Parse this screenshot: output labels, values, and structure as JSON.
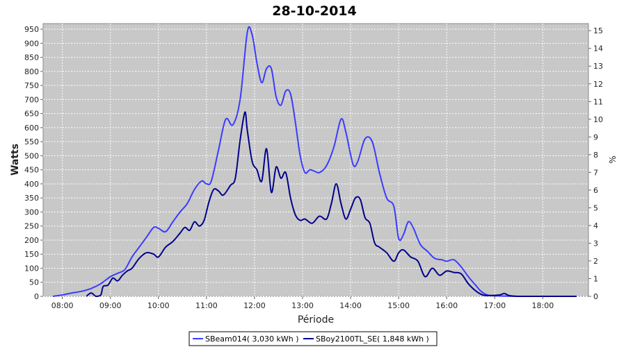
{
  "chart_data": {
    "type": "line",
    "title": "28-10-2014",
    "xlabel": "Période",
    "ylabel": "Watts",
    "y2label": "%",
    "xlim": [
      7.6,
      18.95
    ],
    "ylim": [
      0,
      970
    ],
    "y2lim": [
      0,
      15.4
    ],
    "x_ticks": [
      8,
      9,
      10,
      11,
      12,
      13,
      14,
      15,
      16,
      17,
      18
    ],
    "x_tick_labels": [
      "08:00",
      "09:00",
      "10:00",
      "11:00",
      "12:00",
      "13:00",
      "14:00",
      "15:00",
      "16:00",
      "17:00",
      "18:00"
    ],
    "y_ticks": [
      0,
      50,
      100,
      150,
      200,
      250,
      300,
      350,
      400,
      450,
      500,
      550,
      600,
      650,
      700,
      750,
      800,
      850,
      900,
      950
    ],
    "y2_ticks": [
      0,
      1,
      2,
      3,
      4,
      5,
      6,
      7,
      8,
      9,
      10,
      11,
      12,
      13,
      14,
      15
    ],
    "grid": true,
    "legend_position": "bottom",
    "plot_background": "#c8c8c8",
    "series": [
      {
        "name": "SBeam014( 3,030 kWh )",
        "color": "#3b3bff",
        "x": [
          7.8,
          8.0,
          8.2,
          8.4,
          8.6,
          8.8,
          9.0,
          9.15,
          9.3,
          9.45,
          9.6,
          9.75,
          9.9,
          10.0,
          10.15,
          10.3,
          10.45,
          10.6,
          10.75,
          10.9,
          11.0,
          11.1,
          11.25,
          11.4,
          11.55,
          11.7,
          11.85,
          11.95,
          12.05,
          12.15,
          12.25,
          12.35,
          12.45,
          12.55,
          12.65,
          12.75,
          12.85,
          12.95,
          13.05,
          13.15,
          13.25,
          13.35,
          13.5,
          13.65,
          13.8,
          13.9,
          14.05,
          14.15,
          14.3,
          14.45,
          14.6,
          14.75,
          14.9,
          15.0,
          15.1,
          15.2,
          15.3,
          15.45,
          15.6,
          15.75,
          15.9,
          16.0,
          16.15,
          16.3,
          16.45,
          16.6,
          16.7,
          16.8,
          16.9,
          17.0,
          17.2,
          17.5,
          18.0,
          18.7
        ],
        "y": [
          0,
          5,
          12,
          18,
          28,
          45,
          70,
          82,
          95,
          140,
          175,
          210,
          245,
          242,
          230,
          265,
          300,
          330,
          380,
          410,
          400,
          410,
          520,
          630,
          610,
          700,
          940,
          930,
          830,
          760,
          810,
          810,
          710,
          680,
          730,
          720,
          620,
          500,
          440,
          450,
          445,
          440,
          465,
          530,
          630,
          585,
          470,
          480,
          560,
          550,
          440,
          350,
          320,
          205,
          220,
          265,
          245,
          185,
          160,
          135,
          130,
          125,
          130,
          105,
          70,
          40,
          20,
          8,
          3,
          2,
          1,
          0,
          0,
          0
        ]
      },
      {
        "name": "SBoy2100TL_SE( 1,848 kWh )",
        "color": "#00008b",
        "x": [
          8.5,
          8.6,
          8.7,
          8.8,
          8.85,
          8.95,
          9.05,
          9.15,
          9.25,
          9.35,
          9.45,
          9.6,
          9.75,
          9.9,
          10.0,
          10.15,
          10.3,
          10.45,
          10.55,
          10.65,
          10.75,
          10.85,
          10.95,
          11.05,
          11.15,
          11.25,
          11.35,
          11.5,
          11.6,
          11.7,
          11.8,
          11.85,
          11.95,
          12.05,
          12.15,
          12.25,
          12.35,
          12.45,
          12.55,
          12.65,
          12.75,
          12.85,
          12.95,
          13.05,
          13.2,
          13.35,
          13.5,
          13.6,
          13.7,
          13.8,
          13.9,
          14.0,
          14.1,
          14.2,
          14.3,
          14.4,
          14.5,
          14.6,
          14.75,
          14.9,
          15.0,
          15.1,
          15.25,
          15.4,
          15.55,
          15.7,
          15.85,
          16.0,
          16.15,
          16.3,
          16.45,
          16.6,
          16.75,
          16.9,
          17.1,
          17.2,
          17.3,
          17.5,
          18.0,
          18.7
        ],
        "y": [
          0,
          12,
          0,
          5,
          35,
          40,
          65,
          55,
          75,
          90,
          100,
          135,
          155,
          150,
          140,
          175,
          195,
          225,
          245,
          235,
          265,
          250,
          270,
          335,
          380,
          375,
          360,
          395,
          420,
          555,
          655,
          590,
          480,
          450,
          410,
          525,
          370,
          460,
          420,
          440,
          350,
          290,
          270,
          275,
          260,
          285,
          275,
          330,
          400,
          330,
          275,
          310,
          350,
          345,
          280,
          260,
          190,
          175,
          155,
          125,
          155,
          165,
          140,
          125,
          70,
          100,
          75,
          90,
          85,
          80,
          45,
          20,
          5,
          3,
          5,
          10,
          3,
          0,
          0,
          0
        ]
      }
    ]
  }
}
